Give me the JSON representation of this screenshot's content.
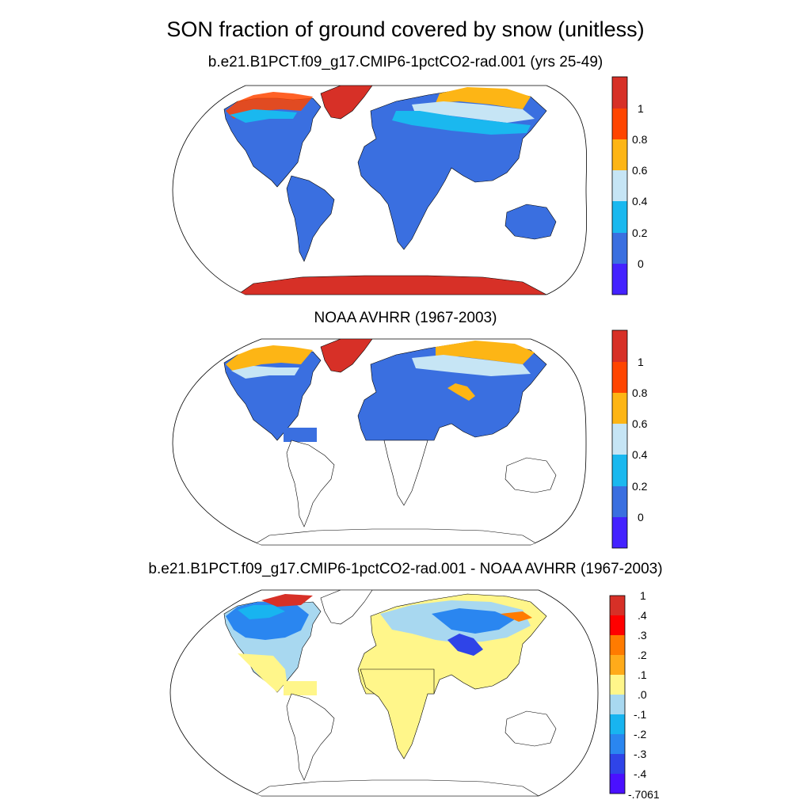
{
  "main_title": "SON fraction of ground covered by snow (unitless)",
  "panels": [
    {
      "title": "b.e21.B1PCT.f09_g17.CMIP6-1pctCO2-rad.001 (yrs 25-49)",
      "colorbar": {
        "labels": [
          "1",
          "0.8",
          "0.6",
          "0.4",
          "0.2",
          "0"
        ],
        "colors": [
          "#d73027",
          "#ff4500",
          "#fdb515",
          "#c6e5f5",
          "#1ab8ef",
          "#3a6fe0",
          "#4422ff"
        ]
      }
    },
    {
      "title": "NOAA AVHRR (1967-2003)",
      "colorbar": {
        "labels": [
          "1",
          "0.8",
          "0.6",
          "0.4",
          "0.2",
          "0"
        ],
        "colors": [
          "#d73027",
          "#ff4500",
          "#fdb515",
          "#c6e5f5",
          "#1ab8ef",
          "#3a6fe0",
          "#4422ff"
        ]
      }
    },
    {
      "title": "b.e21.B1PCT.f09_g17.CMIP6-1pctCO2-rad.001 - NOAA AVHRR (1967-2003)",
      "colorbar": {
        "labels": [
          "1",
          ".4",
          ".3",
          ".2",
          ".1",
          ".0",
          "-.1",
          "-.2",
          "-.3",
          "-.4",
          "-.7061"
        ],
        "colors": [
          "#d73027",
          "#ff0000",
          "#ff7b00",
          "#ffab1a",
          "#fff68a",
          "#a8d8f0",
          "#18b4f0",
          "#2a86f0",
          "#2f44e8",
          "#4a10ff"
        ]
      }
    }
  ],
  "colors": {
    "snow_high": "#d73027",
    "snow_low": "#3a6fe0",
    "diff_zero_positive": "#fff68a",
    "diff_zero_negative": "#a8d8f0"
  }
}
